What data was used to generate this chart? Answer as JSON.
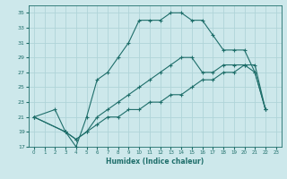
{
  "xlabel": "Humidex (Indice chaleur)",
  "xlim": [
    -0.5,
    23.5
  ],
  "ylim": [
    17,
    36
  ],
  "yticks": [
    17,
    19,
    21,
    23,
    25,
    27,
    29,
    31,
    33,
    35
  ],
  "xticks": [
    0,
    1,
    2,
    3,
    4,
    5,
    6,
    7,
    8,
    9,
    10,
    11,
    12,
    13,
    14,
    15,
    16,
    17,
    18,
    19,
    20,
    21,
    22,
    23
  ],
  "bg_color": "#cde8eb",
  "line_color": "#1e6e6a",
  "grid_color": "#b0d4d8",
  "curves": [
    {
      "x": [
        0,
        2,
        3,
        4,
        5,
        6,
        7,
        8,
        9,
        10,
        11,
        12,
        13,
        14,
        15,
        16,
        17,
        18,
        19,
        20,
        21,
        22
      ],
      "y": [
        21,
        22,
        19,
        17,
        21,
        26,
        27,
        29,
        31,
        34,
        34,
        34,
        35,
        35,
        34,
        34,
        32,
        30,
        30,
        30,
        27,
        22
      ]
    },
    {
      "x": [
        0,
        3,
        4,
        5,
        6,
        7,
        8,
        9,
        10,
        11,
        12,
        13,
        14,
        15,
        16,
        17,
        18,
        19,
        20,
        21,
        22
      ],
      "y": [
        21,
        19,
        18,
        19,
        20,
        21,
        21,
        22,
        22,
        23,
        23,
        24,
        24,
        25,
        26,
        26,
        27,
        27,
        28,
        28,
        22
      ]
    },
    {
      "x": [
        0,
        3,
        4,
        5,
        6,
        7,
        8,
        9,
        10,
        11,
        12,
        13,
        14,
        15,
        16,
        17,
        18,
        19,
        20,
        21,
        22
      ],
      "y": [
        21,
        19,
        18,
        19,
        21,
        22,
        23,
        24,
        25,
        26,
        27,
        28,
        29,
        29,
        27,
        27,
        28,
        28,
        28,
        27,
        22
      ]
    }
  ]
}
